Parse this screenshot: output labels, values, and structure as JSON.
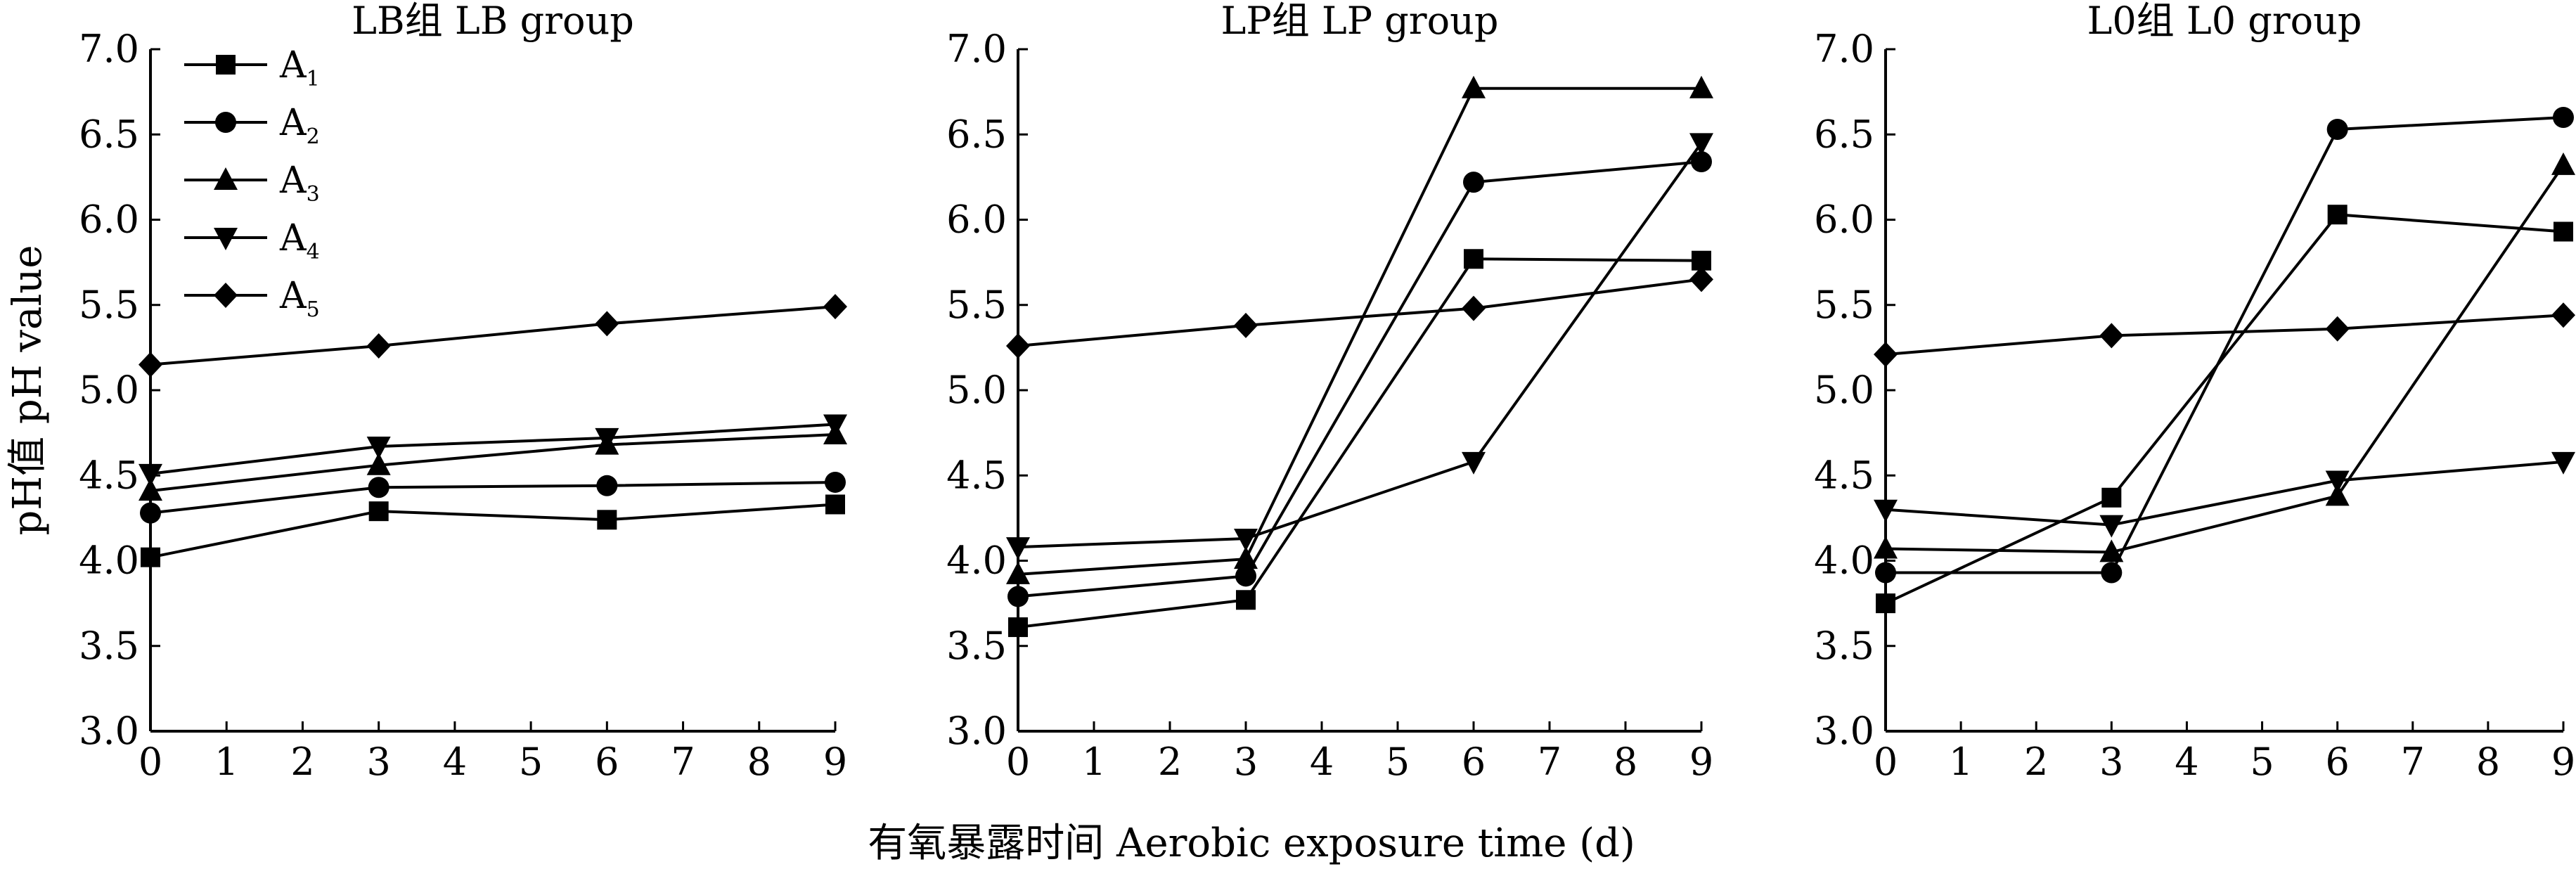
{
  "figure": {
    "ylabel": "pH值 pH value",
    "xlabel": "有氧暴露时间 Aerobic exposure time (d)"
  },
  "legend": [
    {
      "letter": "A",
      "sub": "1",
      "marker": "square"
    },
    {
      "letter": "A",
      "sub": "2",
      "marker": "circle"
    },
    {
      "letter": "A",
      "sub": "3",
      "marker": "triangle-up"
    },
    {
      "letter": "A",
      "sub": "4",
      "marker": "triangle-down"
    },
    {
      "letter": "A",
      "sub": "5",
      "marker": "diamond"
    }
  ],
  "chart_data": [
    {
      "type": "line",
      "title": "LB组 LB group",
      "x": [
        0,
        3,
        6,
        9
      ],
      "xticks": [
        "0",
        "1",
        "2",
        "3",
        "4",
        "5",
        "6",
        "7",
        "8",
        "9"
      ],
      "xlim": [
        0,
        9
      ],
      "ylim": [
        3.0,
        7.0
      ],
      "yticks": [
        "3.0",
        "3.5",
        "4.0",
        "4.5",
        "5.0",
        "5.5",
        "6.0",
        "6.5",
        "7.0"
      ],
      "legend_position": "top-left",
      "series": [
        {
          "name": "A1",
          "marker": "square",
          "values": [
            4.02,
            4.29,
            4.24,
            4.33
          ]
        },
        {
          "name": "A2",
          "marker": "circle",
          "values": [
            4.28,
            4.43,
            4.44,
            4.46
          ]
        },
        {
          "name": "A3",
          "marker": "triangle-up",
          "values": [
            4.41,
            4.56,
            4.68,
            4.74
          ]
        },
        {
          "name": "A4",
          "marker": "triangle-down",
          "values": [
            4.51,
            4.67,
            4.72,
            4.8
          ]
        },
        {
          "name": "A5",
          "marker": "diamond",
          "values": [
            5.15,
            5.26,
            5.39,
            5.49
          ]
        }
      ]
    },
    {
      "type": "line",
      "title": "LP组 LP group",
      "x": [
        0,
        3,
        6,
        9
      ],
      "xticks": [
        "0",
        "1",
        "2",
        "3",
        "4",
        "5",
        "6",
        "7",
        "8",
        "9"
      ],
      "xlim": [
        0,
        9
      ],
      "ylim": [
        3.0,
        7.0
      ],
      "yticks": [
        "3.0",
        "3.5",
        "4.0",
        "4.5",
        "5.0",
        "5.5",
        "6.0",
        "6.5",
        "7.0"
      ],
      "series": [
        {
          "name": "A1",
          "marker": "square",
          "values": [
            3.61,
            3.77,
            5.77,
            5.76
          ]
        },
        {
          "name": "A2",
          "marker": "circle",
          "values": [
            3.79,
            3.91,
            6.22,
            6.34
          ]
        },
        {
          "name": "A3",
          "marker": "triangle-up",
          "values": [
            3.92,
            4.01,
            6.77,
            6.77
          ]
        },
        {
          "name": "A4",
          "marker": "triangle-down",
          "values": [
            4.08,
            4.13,
            4.58,
            6.45
          ]
        },
        {
          "name": "A5",
          "marker": "diamond",
          "values": [
            5.26,
            5.38,
            5.48,
            5.65
          ]
        }
      ]
    },
    {
      "type": "line",
      "title": "L0组 L0 group",
      "x": [
        0,
        3,
        6,
        9
      ],
      "xticks": [
        "0",
        "1",
        "2",
        "3",
        "4",
        "5",
        "6",
        "7",
        "8",
        "9"
      ],
      "xlim": [
        0,
        9
      ],
      "ylim": [
        3.0,
        7.0
      ],
      "yticks": [
        "3.0",
        "3.5",
        "4.0",
        "4.5",
        "5.0",
        "5.5",
        "6.0",
        "6.5",
        "7.0"
      ],
      "series": [
        {
          "name": "A1",
          "marker": "square",
          "values": [
            3.75,
            4.37,
            6.03,
            5.93
          ]
        },
        {
          "name": "A2",
          "marker": "circle",
          "values": [
            3.93,
            3.93,
            6.53,
            6.6
          ]
        },
        {
          "name": "A3",
          "marker": "triangle-up",
          "values": [
            4.07,
            4.05,
            4.38,
            6.32
          ]
        },
        {
          "name": "A4",
          "marker": "triangle-down",
          "values": [
            4.3,
            4.21,
            4.47,
            4.58
          ]
        },
        {
          "name": "A5",
          "marker": "diamond",
          "values": [
            5.21,
            5.32,
            5.36,
            5.44
          ]
        }
      ]
    }
  ]
}
